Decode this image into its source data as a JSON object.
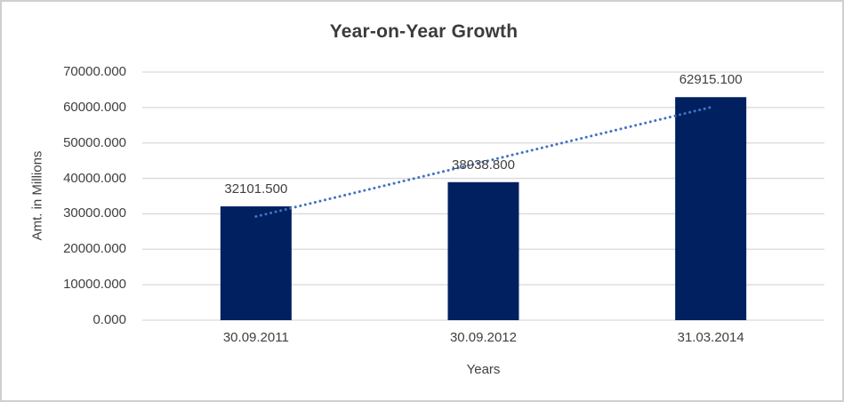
{
  "chart_data": {
    "type": "bar",
    "title": "Year-on-Year Growth",
    "xlabel": "Years",
    "ylabel": "Amt. in Millions",
    "categories": [
      "30.09.2011",
      "30.09.2012",
      "31.03.2014"
    ],
    "values": [
      32101.5,
      38938.8,
      62915.1
    ],
    "data_labels": [
      "32101.500",
      "38938.800",
      "62915.100"
    ],
    "ylim": [
      0,
      70000
    ],
    "ytick_step": 10000,
    "ytick_labels": [
      "0.000",
      "10000.000",
      "20000.000",
      "30000.000",
      "40000.000",
      "50000.000",
      "60000.000",
      "70000.000"
    ],
    "grid": true,
    "legend": "none",
    "trendline": {
      "type": "linear",
      "style": "dotted"
    },
    "colors": {
      "bar": "#002060",
      "trendline": "#4472c4",
      "gridline": "#d9d9d9",
      "axis_line": "#d9d9d9",
      "text": "#404040",
      "title_text": "#3b3b3b",
      "frame_border": "#cfcfcf",
      "background": "#ffffff"
    }
  }
}
